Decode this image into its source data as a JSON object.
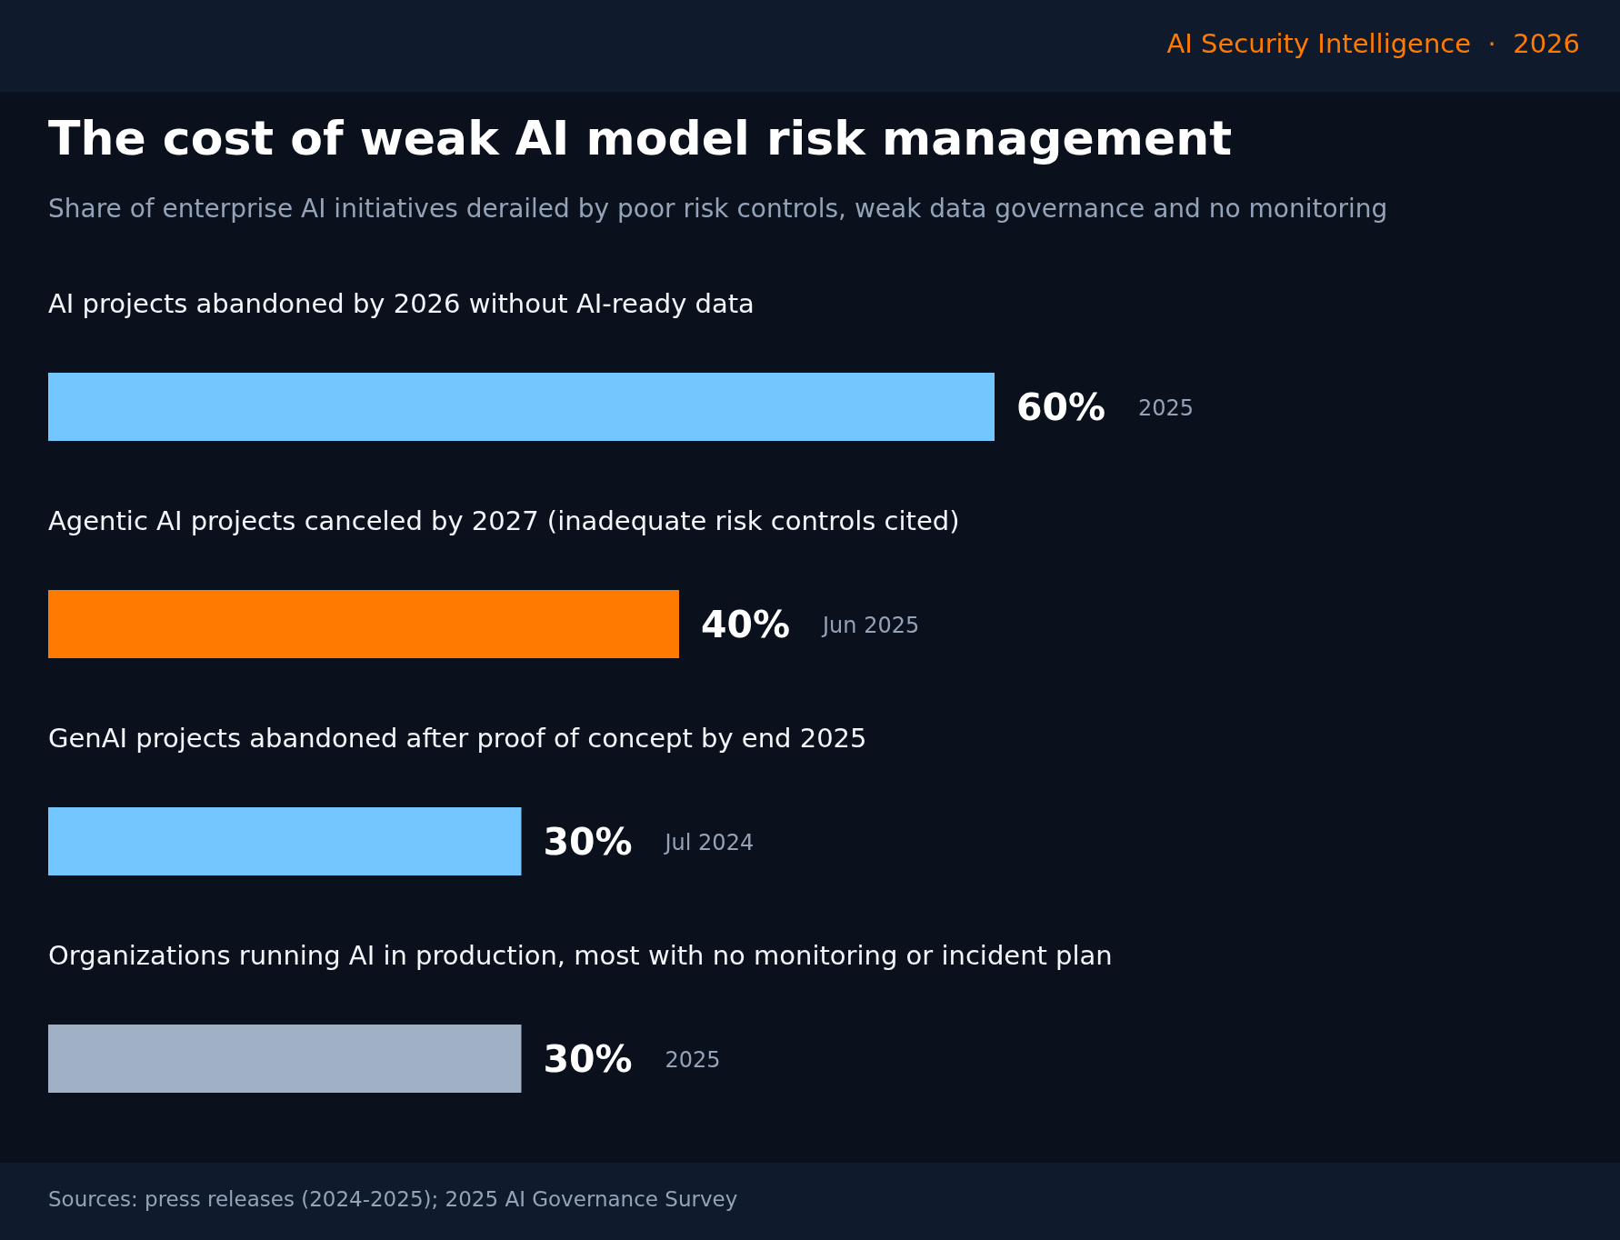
{
  "chart_data": {
    "type": "bar",
    "orientation": "horizontal",
    "tick_labels": false,
    "title": "The cost of weak AI model risk management",
    "subtitle": "Share of enterprise AI initiatives derailed by poor risk controls, weak data governance and no monitoring",
    "categories": [
      "AI projects abandoned by 2026 without AI-ready data",
      "Agentic AI projects canceled by 2027 (inadequate risk controls cited)",
      "GenAI projects abandoned after proof of concept by end 2025",
      "Organizations running AI in production, most with no monitoring or incident plan"
    ],
    "values": [
      60,
      40,
      30,
      30
    ],
    "colors": [
      "#73c6ff",
      "#ff7b00",
      "#73c6ff",
      "#a0b1c6"
    ],
    "value_labels": [
      "60%",
      "40%",
      "30%",
      "30%"
    ],
    "annotations": [
      "AI Security Intelligence  ·  2026",
      "2025",
      "Jun 2025",
      "Jul 2024",
      "2025",
      "Sources: press releases (2024-2025); 2025 AI Governance Survey"
    ]
  }
}
